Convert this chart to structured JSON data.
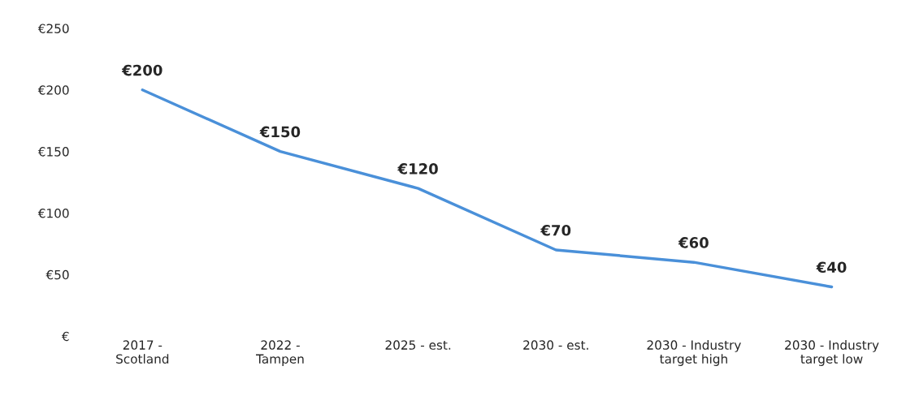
{
  "chart_data": {
    "type": "line",
    "categories": [
      "2017 - Scotland",
      "2022 - Tampen",
      "2025 - est.",
      "2030 - est.",
      "2030 - Industry target high",
      "2030 - Industry target low"
    ],
    "series": [
      {
        "color": "#4a90d9",
        "values": [
          200,
          150,
          120,
          70,
          60,
          40
        ],
        "value_labels": [
          "€200",
          "€150",
          "€120",
          "€70",
          "€60",
          "€40"
        ]
      }
    ],
    "ylim": [
      0,
      250
    ],
    "yticks": [
      {
        "value": 0,
        "label": "€"
      },
      {
        "value": 50,
        "label": "€50"
      },
      {
        "value": 100,
        "label": "€100"
      },
      {
        "value": 150,
        "label": "€150"
      },
      {
        "value": 200,
        "label": "€200"
      },
      {
        "value": 250,
        "label": "€250"
      }
    ],
    "grid": false,
    "line_style": "solid"
  }
}
